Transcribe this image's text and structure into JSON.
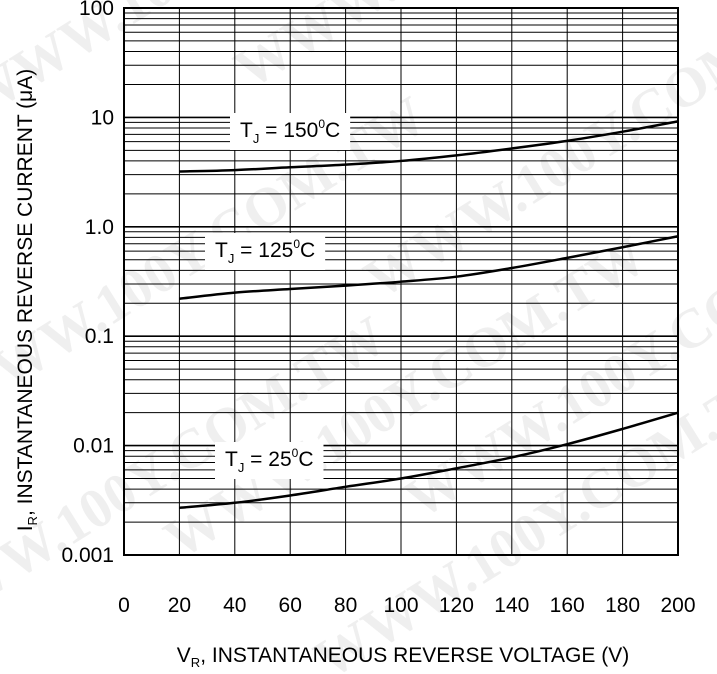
{
  "chart_data": {
    "type": "line",
    "y_scale": "log",
    "xlim": [
      0,
      200
    ],
    "ylim": [
      0.001,
      100
    ],
    "grid": true,
    "x_ticks": [
      "0",
      "20",
      "40",
      "60",
      "80",
      "100",
      "120",
      "140",
      "160",
      "180",
      "200"
    ],
    "y_ticks": [
      "0.001",
      "0.01",
      "0.1",
      "1.0",
      "10",
      "100"
    ],
    "xlabel": {
      "main": "V",
      "sub": "R",
      "rest": ", INSTANTANEOUS REVERSE VOLTAGE (V)"
    },
    "ylabel": {
      "main": "I",
      "sub": "R",
      "rest": ", INSTANTANEOUS REVERSE CURRENT (μA)"
    },
    "series": [
      {
        "label": {
          "main": "T",
          "sub": "J",
          "value": " = 150",
          "sup": "0",
          "unit": "C"
        },
        "x": [
          20,
          40,
          60,
          80,
          100,
          120,
          140,
          160,
          180,
          200
        ],
        "y": [
          3.2,
          3.3,
          3.5,
          3.7,
          4.0,
          4.5,
          5.2,
          6.1,
          7.4,
          9.2
        ]
      },
      {
        "label": {
          "main": "T",
          "sub": "J",
          "value": " = 125",
          "sup": "0",
          "unit": "C"
        },
        "x": [
          20,
          40,
          60,
          80,
          100,
          120,
          140,
          160,
          180,
          200
        ],
        "y": [
          0.22,
          0.25,
          0.27,
          0.29,
          0.315,
          0.35,
          0.42,
          0.52,
          0.65,
          0.82
        ]
      },
      {
        "label": {
          "main": "T",
          "sub": "J",
          "value": " = 25",
          "sup": "0",
          "unit": "C"
        },
        "x": [
          20,
          40,
          60,
          80,
          100,
          120,
          140,
          160,
          180,
          200
        ],
        "y": [
          0.0027,
          0.003,
          0.0035,
          0.0042,
          0.005,
          0.0062,
          0.0078,
          0.0103,
          0.0142,
          0.02
        ]
      }
    ]
  },
  "watermark": "WWW.100Y.COM.TW"
}
